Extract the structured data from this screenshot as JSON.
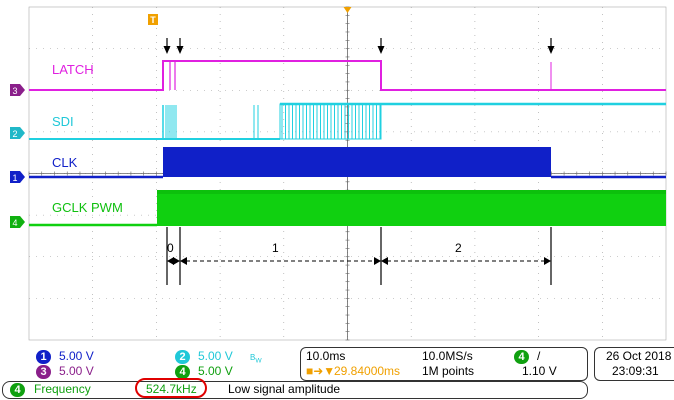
{
  "colors": {
    "latch": "#e020e0",
    "sdi": "#20d0e0",
    "clk": "#1020c8",
    "gclk": "#10d010",
    "trigger": "#f0a000",
    "highlight": "#e00000"
  },
  "channels": {
    "latch": {
      "label": "LATCH",
      "number": "3"
    },
    "sdi": {
      "label": "SDI",
      "number": "2"
    },
    "clk": {
      "label": "CLK",
      "number": "1"
    },
    "gclk": {
      "label": "GCLK PWM",
      "number": "4"
    }
  },
  "trigger_marker": "T",
  "segments": [
    "0",
    "1",
    "2"
  ],
  "status": {
    "ch1_scale": "5.00 V",
    "ch2_scale": "5.00 V",
    "ch3_scale": "5.00 V",
    "ch4_scale": "5.00 V",
    "ch2_bw": "B_W",
    "timebase": "10.0ms",
    "sample_rate": "10.0MS/s",
    "trigger_offset": "29.84000ms",
    "record_length": "1M points",
    "trigger_channel": "4",
    "trigger_slope": "/",
    "trigger_level": "1.10 V",
    "date": "26 Oct  2018",
    "time": "23:09:31"
  },
  "measurement": {
    "channel": "4",
    "name": "Frequency",
    "value": "524.7kHz",
    "note": "Low signal amplitude"
  }
}
